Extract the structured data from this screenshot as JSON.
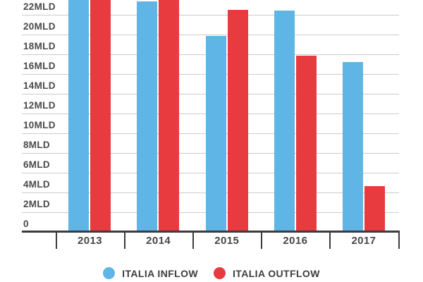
{
  "chart_data": {
    "type": "bar",
    "title": "",
    "unit": "MLD",
    "categories": [
      "2013",
      "2014",
      "2015",
      "2016",
      "2017"
    ],
    "series": [
      {
        "name": "ITALIA INFLOW",
        "color": "#5EB5E6",
        "values": [
          23.5,
          23.3,
          19.8,
          22.4,
          17.2
        ],
        "cropped_at_top": [
          true,
          false,
          false,
          false,
          false
        ]
      },
      {
        "name": "ITALIA OUTFLOW",
        "color": "#E73B40",
        "values": [
          23.5,
          23.5,
          22.5,
          17.8,
          4.6
        ],
        "cropped_at_top": [
          true,
          true,
          false,
          false,
          false
        ]
      }
    ],
    "y_axis": {
      "tick_labels": [
        "22MLD",
        "20MLD",
        "18MLD",
        "16MLD",
        "14MLD",
        "12MLD",
        "10MLD",
        "8MLD",
        "6MLD",
        "4MLD",
        "2MLD",
        "0"
      ],
      "tick_values": [
        22,
        20,
        18,
        16,
        14,
        12,
        10,
        8,
        6,
        4,
        2,
        0
      ],
      "visible_range": [
        0,
        23.5
      ]
    },
    "grid": true,
    "legend_position": "bottom",
    "note": "Top of chart is cropped by the screenshot edge; 2013 inflow, 2013 outflow and 2014 outflow bars extend beyond the visible area (values shown are the visible extent)."
  },
  "legend": {
    "items": [
      {
        "label": "ITALIA INFLOW",
        "color": "#5EB5E6"
      },
      {
        "label": "ITALIA OUTFLOW",
        "color": "#E73B40"
      }
    ]
  },
  "colors": {
    "inflow": "#5EB5E6",
    "outflow": "#E73B40",
    "gridline": "#CBCBCB",
    "axis": "#3C3C3C",
    "tick_label_text": "#4A4A4A",
    "legend_text": "#3D3D3D",
    "background": "#FFFFFF"
  }
}
